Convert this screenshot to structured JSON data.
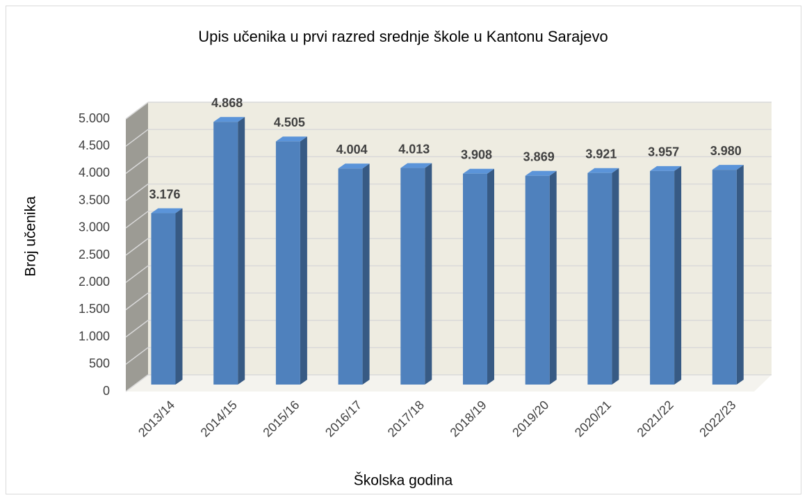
{
  "chart_data": {
    "type": "bar3d",
    "title": "Upis učenika u prvi razred srednje škole u Kantonu Sarajevo",
    "x_label": "Školska godina",
    "y_label": "Broj učenika",
    "categories": [
      "2013/14",
      "2014/15",
      "2015/16",
      "2016/17",
      "2017/18",
      "2018/19",
      "2019/20",
      "2020/21",
      "2021/22",
      "2022/23"
    ],
    "values": [
      3176,
      4868,
      4505,
      4004,
      4013,
      3908,
      3869,
      3921,
      3957,
      3980
    ],
    "value_labels": [
      "3.176",
      "4.868",
      "4.505",
      "4.004",
      "4.013",
      "3.908",
      "3.869",
      "3.921",
      "3.957",
      "3.980"
    ],
    "color": "#4f81bd",
    "ylim": [
      0,
      5000
    ],
    "yticks": [
      0,
      500,
      {
        "value": 1000,
        "label": "1.000"
      },
      {
        "value": 1500,
        "label": "1.500"
      },
      {
        "value": 2000,
        "label": "2.000"
      },
      {
        "value": 2500,
        "label": "2.500"
      },
      {
        "value": 3000,
        "label": "3.000"
      },
      {
        "value": 3500,
        "label": "3.500"
      },
      {
        "value": 4000,
        "label": "4.000"
      },
      {
        "value": 4500,
        "label": "4.500"
      },
      {
        "value": 5000,
        "label": "5.000"
      }
    ],
    "grid": true
  }
}
